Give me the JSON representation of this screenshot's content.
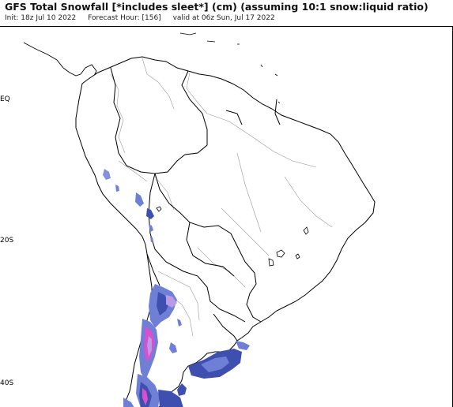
{
  "header": {
    "title": "GFS Total Snowfall [*includes sleet*] (cm) (assuming 10:1 snow:liquid ratio)",
    "init": "Init: 18z Jul 10 2022",
    "forecast_hour": "Forecast Hour: [156]",
    "valid": "valid at 06z Sun, Jul 17 2022"
  },
  "map": {
    "latitude_labels": [
      "EQ",
      "20S",
      "40S"
    ],
    "colors": {
      "coastline": "#000000",
      "borders": "#999999",
      "snow_light": "#6f7fd6",
      "snow_medium": "#3f4fb0",
      "snow_dark": "#2a358f",
      "snow_pink": "#d94fd0",
      "snow_lilac": "#b89ae6"
    }
  }
}
